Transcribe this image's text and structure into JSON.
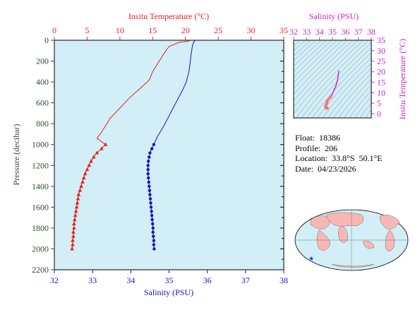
{
  "colors": {
    "temperature": "#e8201c",
    "salinity": "#1414c8",
    "pressure_axis": "#2d4d2d",
    "inset_salinity": "#cc22cc",
    "plot_bg": "#d2eef7",
    "land": "#f7b7b4",
    "float_marker": "#1e3ccc"
  },
  "main_plot": {
    "top_axis_title": "Insitu Temperature (°C)",
    "bottom_axis_title": "Salinity (PSU)",
    "left_axis_title": "Pressure (decibar)",
    "temp_ticks": [
      "0",
      "5",
      "10",
      "15",
      "20",
      "25",
      "30",
      "35"
    ],
    "salinity_ticks": [
      "32",
      "33",
      "34",
      "35",
      "36",
      "37",
      "38"
    ],
    "pressure_ticks": [
      "0",
      "200",
      "400",
      "600",
      "800",
      "1000",
      "1200",
      "1400",
      "1600",
      "1800",
      "2000",
      "2200"
    ]
  },
  "inset_plot": {
    "top_axis_title": "Salinity (PSU)",
    "right_axis_title": "Insitu Temperature (°C)",
    "salinity_ticks": [
      "32",
      "33",
      "34",
      "35",
      "36",
      "37",
      "38"
    ],
    "temp_ticks": [
      "35",
      "30",
      "25",
      "20",
      "15",
      "10",
      "5",
      "0"
    ]
  },
  "float_info": {
    "float_label": "Float:",
    "float_value": "18386",
    "profile_label": "Profile:",
    "profile_value": "206",
    "location_label": "Location:",
    "location_value": "33.8°S  50.1°E",
    "date_label": "Date:",
    "date_value": "04/23/2026"
  },
  "chart_data": [
    {
      "type": "line",
      "x_axis_temperature": {
        "label": "Insitu Temperature (°C)",
        "range": [
          0,
          35
        ]
      },
      "x_axis_salinity": {
        "label": "Salinity (PSU)",
        "range": [
          32,
          38
        ]
      },
      "y_axis": {
        "label": "Pressure (decibar)",
        "range": [
          0,
          2200
        ],
        "inverted": true
      },
      "grid": false,
      "series": [
        {
          "variable": "temperature",
          "marker": "triangle",
          "points": [
            [
              20.6,
              5
            ],
            [
              20.4,
              10
            ],
            [
              19.0,
              20
            ],
            [
              17.5,
              60
            ],
            [
              16.8,
              120
            ],
            [
              16.0,
              200
            ],
            [
              15.0,
              300
            ],
            [
              14.5,
              380
            ],
            [
              13.3,
              450
            ],
            [
              11.5,
              550
            ],
            [
              10.0,
              650
            ],
            [
              8.5,
              750
            ],
            [
              7.8,
              820
            ],
            [
              7.2,
              880
            ],
            [
              6.5,
              940
            ],
            [
              7.8,
              1000
            ],
            [
              7.2,
              1040
            ],
            [
              6.5,
              1080
            ],
            [
              6.0,
              1120
            ],
            [
              5.6,
              1160
            ],
            [
              5.3,
              1200
            ],
            [
              5.0,
              1240
            ],
            [
              4.7,
              1280
            ],
            [
              4.5,
              1320
            ],
            [
              4.3,
              1360
            ],
            [
              4.1,
              1400
            ],
            [
              3.9,
              1440
            ],
            [
              3.7,
              1480
            ],
            [
              3.6,
              1520
            ],
            [
              3.5,
              1560
            ],
            [
              3.4,
              1600
            ],
            [
              3.3,
              1640
            ],
            [
              3.2,
              1680
            ],
            [
              3.1,
              1720
            ],
            [
              3.0,
              1760
            ],
            [
              3.0,
              1800
            ],
            [
              2.9,
              1840
            ],
            [
              2.9,
              1880
            ],
            [
              2.8,
              1920
            ],
            [
              2.8,
              1960
            ],
            [
              2.7,
              2000
            ]
          ],
          "marker_from_pressure": 1000
        },
        {
          "variable": "salinity",
          "marker": "dot",
          "points": [
            [
              35.68,
              5
            ],
            [
              35.65,
              15
            ],
            [
              35.62,
              40
            ],
            [
              35.6,
              80
            ],
            [
              35.57,
              150
            ],
            [
              35.55,
              220
            ],
            [
              35.52,
              300
            ],
            [
              35.45,
              400
            ],
            [
              35.35,
              480
            ],
            [
              35.25,
              550
            ],
            [
              35.12,
              640
            ],
            [
              34.98,
              740
            ],
            [
              34.85,
              830
            ],
            [
              34.7,
              920
            ],
            [
              34.6,
              1000
            ],
            [
              34.55,
              1040
            ],
            [
              34.5,
              1080
            ],
            [
              34.48,
              1120
            ],
            [
              34.46,
              1160
            ],
            [
              34.45,
              1200
            ],
            [
              34.45,
              1240
            ],
            [
              34.45,
              1280
            ],
            [
              34.46,
              1320
            ],
            [
              34.47,
              1360
            ],
            [
              34.48,
              1400
            ],
            [
              34.49,
              1440
            ],
            [
              34.5,
              1480
            ],
            [
              34.51,
              1520
            ],
            [
              34.52,
              1560
            ],
            [
              34.53,
              1600
            ],
            [
              34.54,
              1640
            ],
            [
              34.55,
              1680
            ],
            [
              34.56,
              1720
            ],
            [
              34.57,
              1760
            ],
            [
              34.58,
              1800
            ],
            [
              34.58,
              1840
            ],
            [
              34.59,
              1880
            ],
            [
              34.6,
              1920
            ],
            [
              34.6,
              1960
            ],
            [
              34.61,
              2000
            ]
          ],
          "marker_from_pressure": 1000
        }
      ]
    },
    {
      "type": "scatter",
      "x_axis": {
        "label": "Salinity (PSU)",
        "range": [
          32,
          38
        ]
      },
      "y_axis": {
        "label": "Insitu Temperature (°C)",
        "range": [
          -2,
          35
        ]
      },
      "grid": false,
      "series": [
        {
          "variable": "temperature_vs_salinity",
          "points": [
            [
              35.5,
              20.5
            ],
            [
              35.45,
              19
            ],
            [
              35.42,
              17
            ],
            [
              35.35,
              15
            ],
            [
              35.25,
              13
            ],
            [
              35.1,
              11
            ],
            [
              35.0,
              9.5
            ],
            [
              34.85,
              8
            ],
            [
              34.7,
              7
            ],
            [
              34.6,
              6
            ],
            [
              34.55,
              5
            ],
            [
              34.5,
              4.2
            ],
            [
              34.48,
              3.7
            ],
            [
              34.47,
              3.3
            ],
            [
              34.48,
              3.0
            ],
            [
              34.5,
              2.8
            ],
            [
              34.55,
              2.7
            ],
            [
              34.6,
              2.7
            ]
          ]
        }
      ]
    }
  ]
}
